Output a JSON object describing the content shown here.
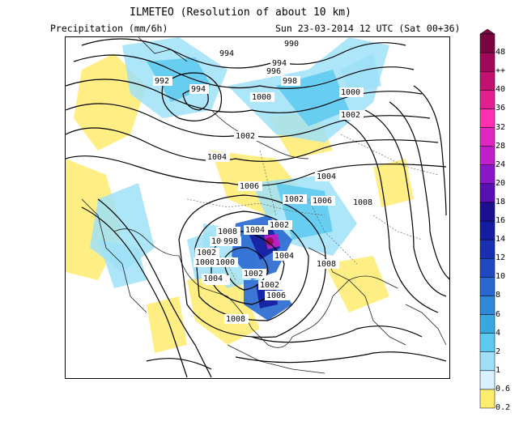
{
  "header": {
    "title": "ILMETEO (Resolution of about 10 km)",
    "variable": "Precipitation (mm/6h)",
    "valid_time": "Sun 23-03-2014 12 UTC (Sat 00+36)"
  },
  "legend": {
    "levels": [
      "0.2",
      "0.6",
      "1",
      "2",
      "4",
      "6",
      "8",
      "10",
      "12",
      "14",
      "16",
      "18",
      "20",
      "24",
      "28",
      "32",
      "36",
      "40",
      "++",
      "48"
    ],
    "colors": [
      "#ffeb6e",
      "#d8f0ff",
      "#9fe0f8",
      "#5ccaf0",
      "#38a8e0",
      "#2f88d8",
      "#2868d0",
      "#2048c0",
      "#1830b0",
      "#141ca0",
      "#1a1090",
      "#5a10b0",
      "#8a18c8",
      "#c020c8",
      "#e028c0",
      "#ff30b0",
      "#e02090",
      "#c01070",
      "#a00858",
      "#780440"
    ]
  },
  "isobars": [
    {
      "label": "990",
      "color": "#000000"
    },
    {
      "label": "992",
      "color": "#000000"
    },
    {
      "label": "994",
      "color": "#000000"
    },
    {
      "label": "994",
      "color": "#000000"
    },
    {
      "label": "994",
      "color": "#000000"
    },
    {
      "label": "996",
      "color": "#000000"
    },
    {
      "label": "998",
      "color": "#000000"
    },
    {
      "label": "1000",
      "color": "#000000"
    },
    {
      "label": "1000",
      "color": "#000000"
    },
    {
      "label": "1002",
      "color": "#000000"
    },
    {
      "label": "1002",
      "color": "#000000"
    },
    {
      "label": "1004",
      "color": "#000000"
    },
    {
      "label": "1004",
      "color": "#000000"
    },
    {
      "label": "1006",
      "color": "#000000"
    },
    {
      "label": "1006",
      "color": "#000000"
    },
    {
      "label": "1008",
      "color": "#000000"
    },
    {
      "label": "1002",
      "color": "#000000"
    },
    {
      "label": "1008",
      "color": "#000000"
    },
    {
      "label": "1004",
      "color": "#000000"
    },
    {
      "label": "1002",
      "color": "#000000"
    },
    {
      "label": "1008",
      "color": "#000000"
    },
    {
      "label": "998",
      "color": "#000000"
    },
    {
      "label": "1004",
      "color": "#000000"
    },
    {
      "label": "1002",
      "color": "#000000"
    },
    {
      "label": "1000",
      "color": "#000000"
    },
    {
      "label": "1000",
      "color": "#000000"
    },
    {
      "label": "1004",
      "color": "#000000"
    },
    {
      "label": "1008",
      "color": "#000000"
    },
    {
      "label": "1002",
      "color": "#000000"
    },
    {
      "label": "1002",
      "color": "#000000"
    },
    {
      "label": "1006",
      "color": "#000000"
    },
    {
      "label": "1004",
      "color": "#000000"
    },
    {
      "label": "1008",
      "color": "#000000"
    }
  ]
}
